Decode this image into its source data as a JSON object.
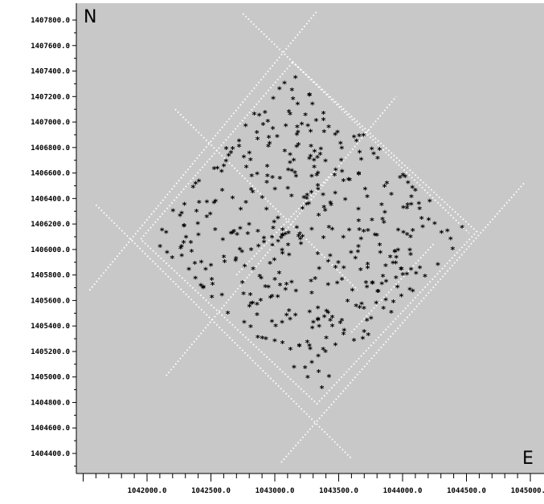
{
  "chart_data": {
    "type": "scatter",
    "north_label": "N",
    "east_label": "E",
    "xlim": [
      1041500,
      1045000
    ],
    "ylim": [
      1404250,
      1407900
    ],
    "x_ticks": [
      {
        "value": 1042000,
        "label": "1042000.0"
      },
      {
        "value": 1042500,
        "label": "1042500.0"
      },
      {
        "value": 1043000,
        "label": "1043000.0"
      },
      {
        "value": 1043500,
        "label": "1043500.0"
      },
      {
        "value": 1044000,
        "label": "1044000.0"
      },
      {
        "value": 1044500,
        "label": "1044500.0"
      },
      {
        "value": 1045000,
        "label": "1045000.0"
      }
    ],
    "y_ticks": [
      {
        "value": 1407800,
        "label": "1407800.0"
      },
      {
        "value": 1407600,
        "label": "1407600.0"
      },
      {
        "value": 1407400,
        "label": "1407400.0"
      },
      {
        "value": 1407200,
        "label": "1407200.0"
      },
      {
        "value": 1407000,
        "label": "1407000.0"
      },
      {
        "value": 1406800,
        "label": "1406800.0"
      },
      {
        "value": 1406600,
        "label": "1406600.0"
      },
      {
        "value": 1406400,
        "label": "1406400.0"
      },
      {
        "value": 1406200,
        "label": "1406200.0"
      },
      {
        "value": 1406000,
        "label": "1406000.0"
      },
      {
        "value": 1405800,
        "label": "1405800.0"
      },
      {
        "value": 1405600,
        "label": "1405600.0"
      },
      {
        "value": 1405400,
        "label": "1405400.0"
      },
      {
        "value": 1405200,
        "label": "1405200.0"
      },
      {
        "value": 1405000,
        "label": "1405000.0"
      },
      {
        "value": 1404800,
        "label": "1404800.0"
      },
      {
        "value": 1404600,
        "label": "1404600.0"
      },
      {
        "value": 1404400,
        "label": "1404400.0"
      }
    ],
    "boundary": {
      "north": [
        1043140,
        1407470
      ],
      "east": [
        1044580,
        1406140
      ],
      "south": [
        1043330,
        1404790
      ],
      "west": [
        1041950,
        1406080
      ]
    },
    "guide_lines": [
      {
        "from": [
          1042750,
          1407850
        ],
        "to": [
          1044520,
          1406130
        ]
      },
      {
        "from": [
          1042220,
          1407100
        ],
        "to": [
          1043650,
          1405680
        ]
      },
      {
        "from": [
          1041600,
          1406350
        ],
        "to": [
          1043600,
          1404360
        ]
      },
      {
        "from": [
          1041550,
          1405680
        ],
        "to": [
          1043330,
          1407870
        ]
      },
      {
        "from": [
          1042150,
          1405010
        ],
        "to": [
          1043950,
          1407200
        ]
      },
      {
        "from": [
          1043050,
          1404330
        ],
        "to": [
          1044950,
          1406520
        ]
      },
      {
        "from": [
          1042700,
          1405800
        ],
        "to": [
          1043450,
          1406600
        ]
      },
      {
        "from": [
          1043600,
          1405350
        ],
        "to": [
          1044250,
          1406050
        ]
      }
    ],
    "points": {
      "symbol": "*",
      "color": "#000000",
      "count": 420,
      "seed": 12345
    },
    "grid": false,
    "background": "#c8c8c8",
    "guide_color": "#ffffff"
  }
}
